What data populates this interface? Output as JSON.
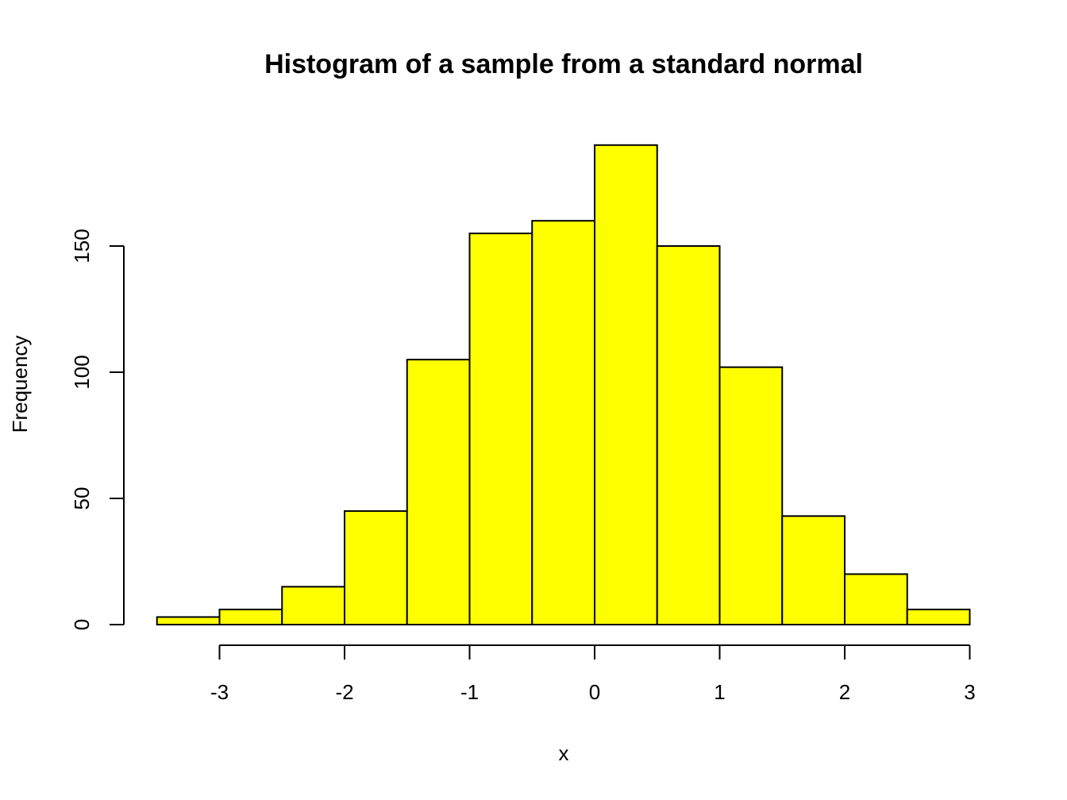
{
  "chart_data": {
    "type": "bar",
    "title": "Histogram of a sample from a standard normal",
    "xlabel": "x",
    "ylabel": "Frequency",
    "bin_edges": [
      -3.5,
      -3.0,
      -2.5,
      -2.0,
      -1.5,
      -1.0,
      -0.5,
      0.0,
      0.5,
      1.0,
      1.5,
      2.0,
      2.5,
      3.0
    ],
    "values": [
      3,
      6,
      15,
      45,
      105,
      155,
      160,
      190,
      150,
      102,
      43,
      20,
      6
    ],
    "x_ticks": [
      -3,
      -2,
      -1,
      0,
      1,
      2,
      3
    ],
    "x_tick_labels": [
      "-3",
      "-2",
      "-1",
      "0",
      "1",
      "2",
      "3"
    ],
    "y_ticks": [
      0,
      50,
      100,
      150
    ],
    "y_tick_labels": [
      "0",
      "50",
      "100",
      "150"
    ],
    "xlim": [
      -3.5,
      3.0
    ],
    "ylim": [
      0,
      190
    ],
    "grid": false,
    "bar_color": "#ffff00",
    "border_color": "#000000"
  }
}
